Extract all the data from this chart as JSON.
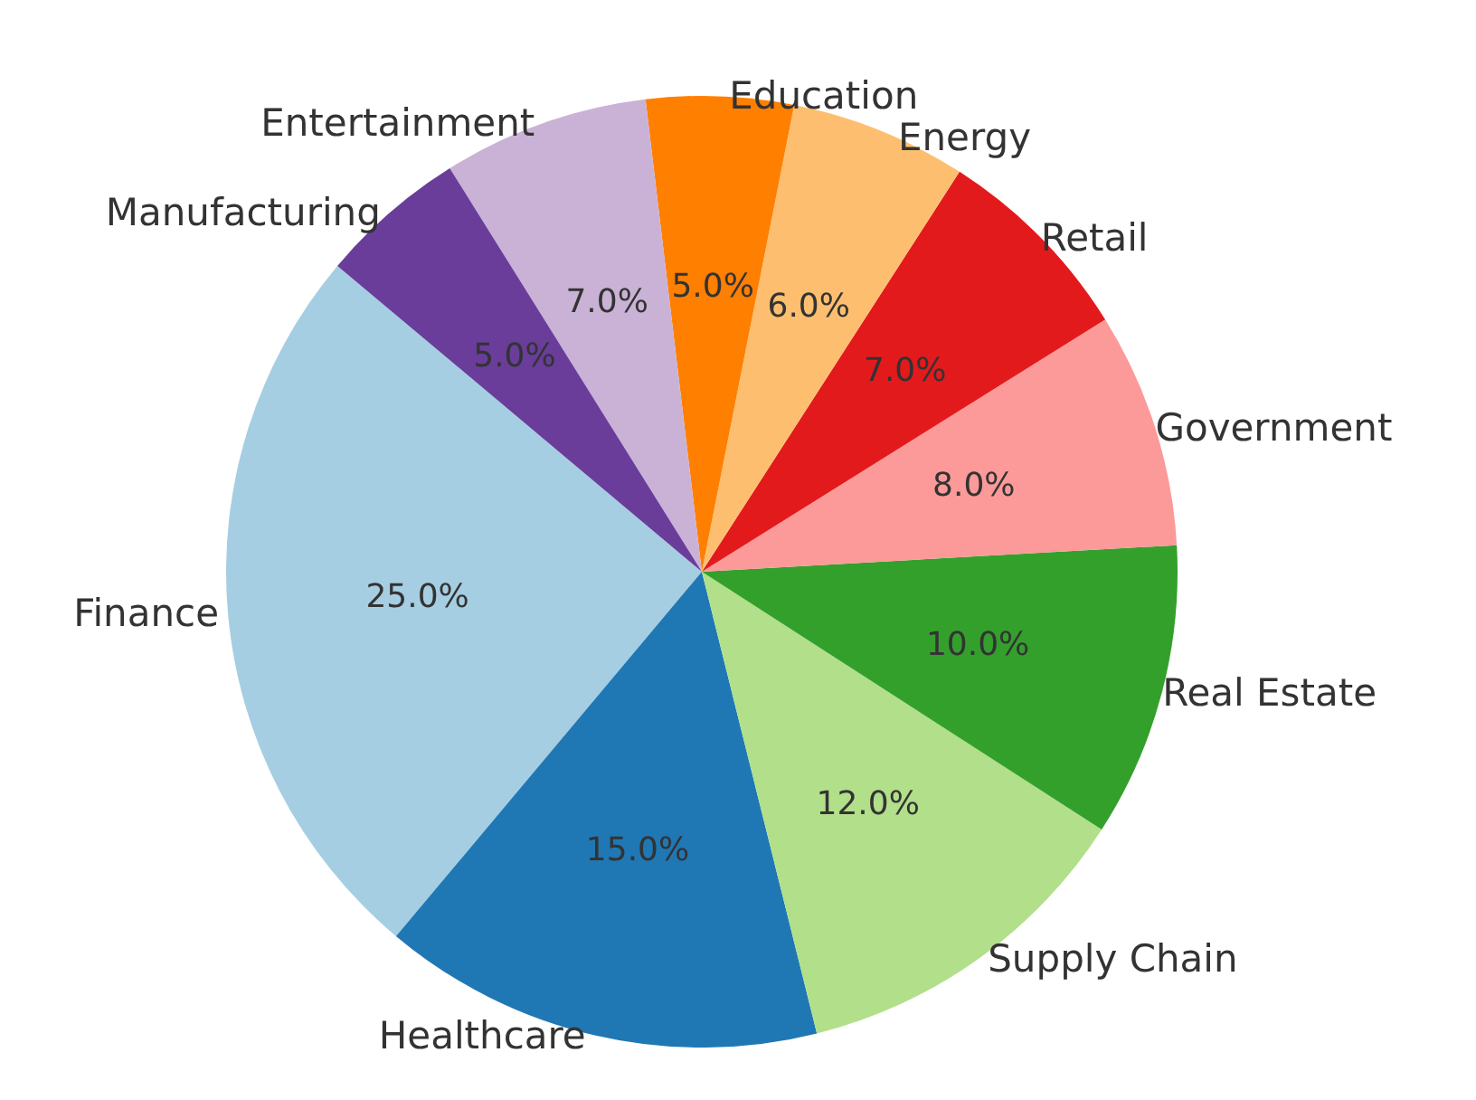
{
  "chart_data": {
    "type": "pie",
    "categories": [
      "Finance",
      "Healthcare",
      "Supply Chain",
      "Real Estate",
      "Government",
      "Retail",
      "Energy",
      "Education",
      "Entertainment",
      "Manufacturing"
    ],
    "values": [
      25,
      15,
      12,
      10,
      8,
      7,
      6,
      5,
      7,
      5
    ],
    "colors": [
      "#a6cee3",
      "#1f78b4",
      "#b2df8a",
      "#33a02c",
      "#fb9a99",
      "#e31a1c",
      "#fdbf6f",
      "#ff7f00",
      "#cab2d6",
      "#6a3d9a"
    ],
    "value_labels": [
      "25.0%",
      "15.0%",
      "12.0%",
      "10.0%",
      "8.0%",
      "7.0%",
      "6.0%",
      "5.0%",
      "7.0%",
      "5.0%"
    ]
  }
}
